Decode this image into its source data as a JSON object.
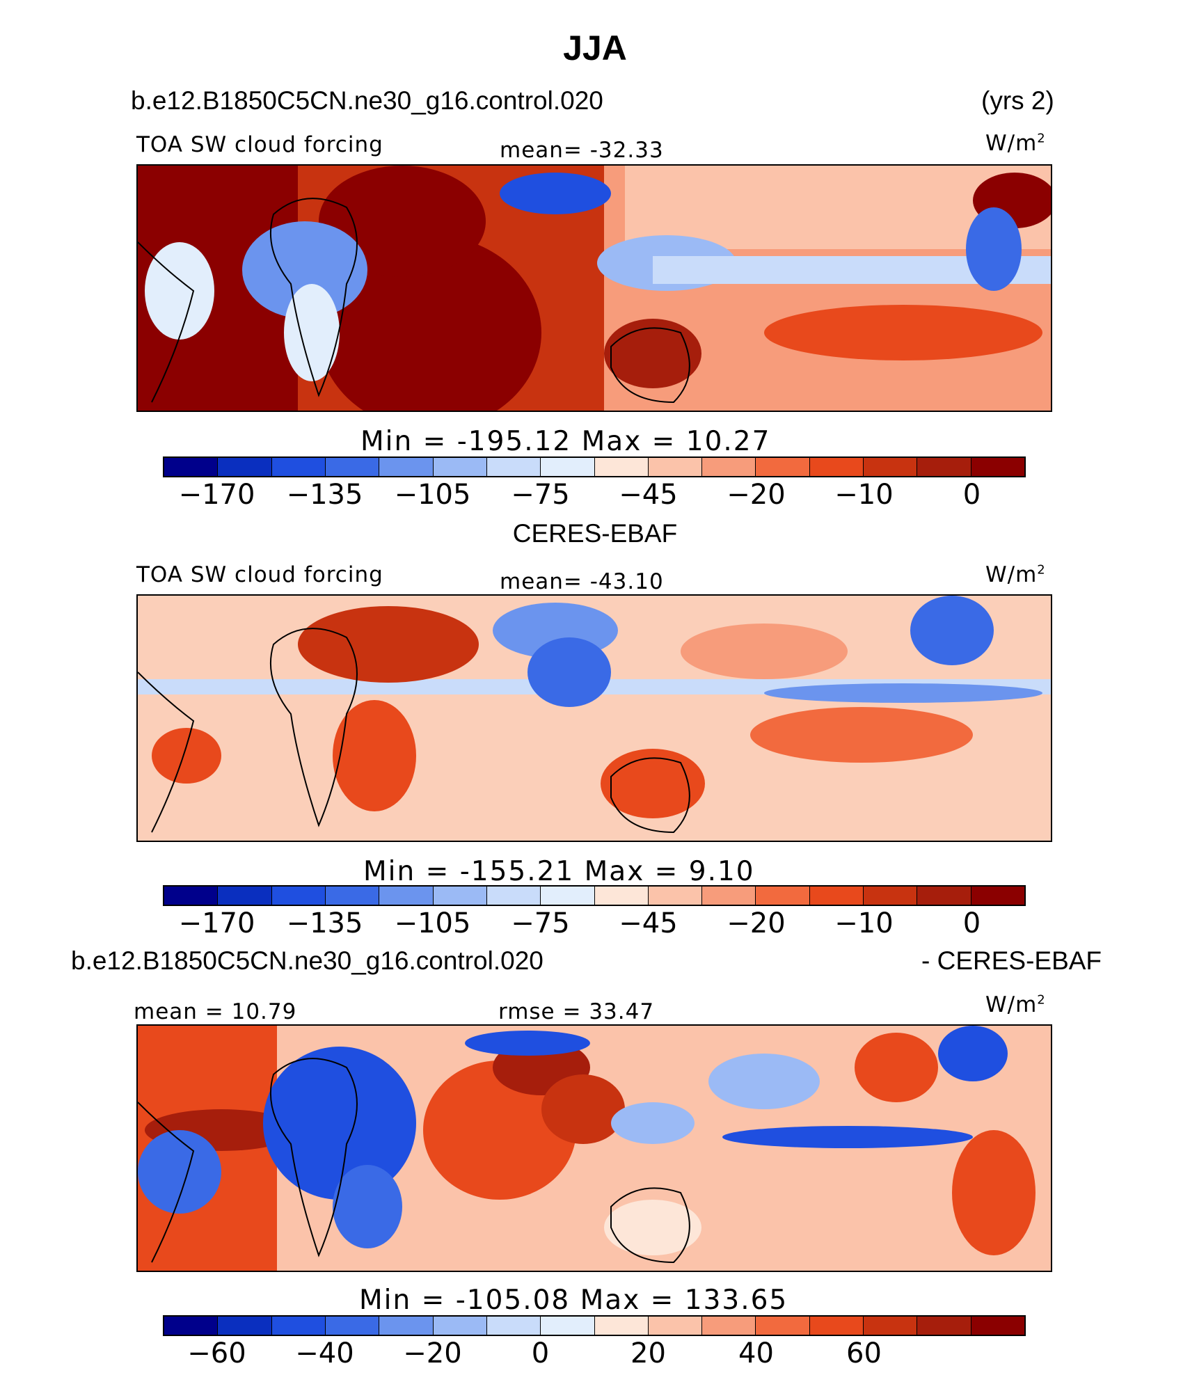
{
  "figure": {
    "title": "JJA",
    "case_name": "b.e12.B1850C5CN.ne30_g16.control.020",
    "years": "(yrs 2)",
    "obs_name": "CERES-EBAF",
    "diff_case": "b.e12.B1850C5CN.ne30_g16.control.020",
    "diff_obs": "- CERES-EBAF"
  },
  "colors": {
    "scale": [
      "#00008b",
      "#0a2fbf",
      "#1f4fe0",
      "#3a6ae6",
      "#6b94ee",
      "#9bbaf5",
      "#c9dcfa",
      "#e2eefc",
      "#fde6d8",
      "#fbc3aa",
      "#f79c7b",
      "#f26a3e",
      "#e8491c",
      "#c83310",
      "#a61e0c",
      "#8b0000"
    ]
  },
  "chart_data": [
    {
      "type": "heatmap",
      "panel": "model",
      "field": "TOA SW cloud forcing",
      "units": "W/m",
      "units_sup": "2",
      "mean_label": "mean=",
      "mean": "-32.33",
      "min_label": "Min  =",
      "min": "-195.12",
      "max_label": "Max  =",
      "max": "10.27",
      "colorbar_levels": [
        -170,
        -135,
        -105,
        -75,
        -45,
        -20,
        -10,
        0
      ],
      "colorbar_tick_labels": [
        "-170",
        "-135",
        "-105",
        "-75",
        "-45",
        "-20",
        "-10",
        "0"
      ]
    },
    {
      "type": "heatmap",
      "panel": "observations",
      "field": "TOA SW cloud forcing",
      "units": "W/m",
      "units_sup": "2",
      "mean_label": "mean=",
      "mean": "-43.10",
      "min_label": "Min  =",
      "min": "-155.21",
      "max_label": "Max  =",
      "max": "9.10",
      "colorbar_levels": [
        -170,
        -135,
        -105,
        -75,
        -45,
        -20,
        -10,
        0
      ],
      "colorbar_tick_labels": [
        "-170",
        "-135",
        "-105",
        "-75",
        "-45",
        "-20",
        "-10",
        "0"
      ]
    },
    {
      "type": "heatmap",
      "panel": "difference",
      "units": "W/m",
      "units_sup": "2",
      "mean_label": "mean  =",
      "mean": "10.79",
      "rmse_label": "rmse  =",
      "rmse": "33.47",
      "min_label": "Min  =",
      "min": "-105.08",
      "max_label": "Max  =",
      "max": "133.65",
      "colorbar_levels": [
        -60,
        -40,
        -20,
        0,
        20,
        40,
        60
      ],
      "colorbar_tick_labels": [
        "-60",
        "-40",
        "-20",
        "0",
        "20",
        "40",
        "60"
      ]
    }
  ]
}
